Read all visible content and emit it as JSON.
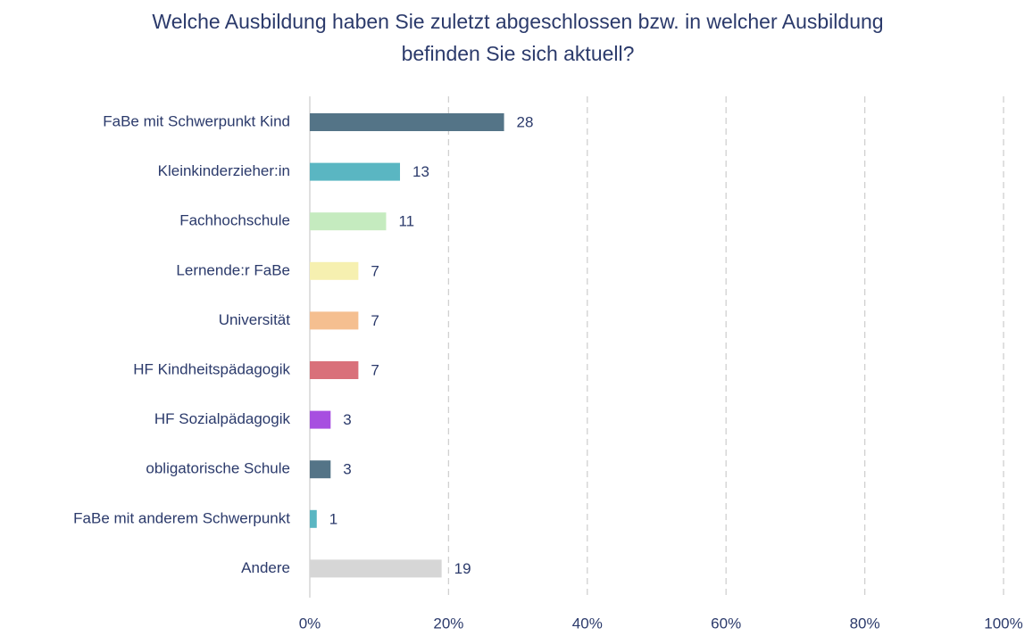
{
  "chart_data": {
    "type": "barh",
    "title": "Welche Ausbildung haben Sie zuletzt abgeschlossen bzw. in welcher Ausbildung befinden Sie sich aktuell?",
    "categories": [
      "FaBe mit Schwerpunkt Kind",
      "Kleinkinderzieher:in",
      "Fachhochschule",
      "Lernende:r FaBe",
      "Universität",
      "HF Kindheitspädagogik",
      "HF Sozialpädagogik",
      "obligatorische Schule",
      "FaBe mit anderem Schwerpunkt",
      "Andere"
    ],
    "values": [
      28,
      13,
      11,
      7,
      7,
      7,
      3,
      3,
      1,
      19
    ],
    "colors": [
      "#547487",
      "#5ab6c2",
      "#c5ebbf",
      "#f6f0b0",
      "#f5bf90",
      "#d9707a",
      "#a74fe0",
      "#547487",
      "#5ab6c2",
      "#d6d6d6"
    ],
    "xlim": [
      0,
      100
    ],
    "xticks": [
      {
        "value": 0,
        "label": "0%"
      },
      {
        "value": 20,
        "label": "20%"
      },
      {
        "value": 40,
        "label": "40%"
      },
      {
        "value": 60,
        "label": "60%"
      },
      {
        "value": 80,
        "label": "80%"
      },
      {
        "value": 100,
        "label": "100%"
      }
    ],
    "grid": true
  }
}
